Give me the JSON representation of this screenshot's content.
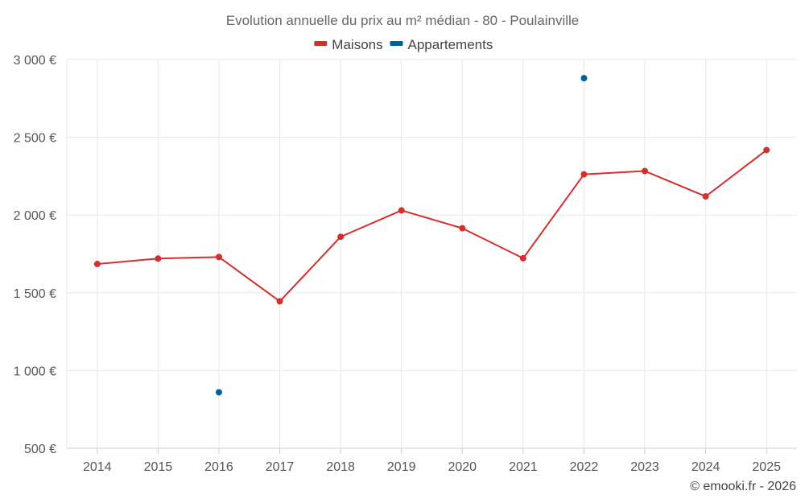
{
  "chart_data": {
    "type": "line",
    "title": "Evolution annuelle du prix au m² médian - 80 - Poulainville",
    "categories": [
      "2014",
      "2015",
      "2016",
      "2017",
      "2018",
      "2019",
      "2020",
      "2021",
      "2022",
      "2023",
      "2024",
      "2025"
    ],
    "series": [
      {
        "name": "Maisons",
        "color": "#d32f2f",
        "values": [
          1685,
          1720,
          1730,
          1445,
          1860,
          2030,
          1915,
          1722,
          2262,
          2283,
          2120,
          2418
        ]
      },
      {
        "name": "Appartements",
        "color": "#01609a",
        "values": [
          null,
          null,
          860,
          null,
          null,
          null,
          null,
          null,
          2880,
          null,
          null,
          null
        ]
      }
    ],
    "ylim": [
      500,
      3000
    ],
    "yticks": [
      500,
      1000,
      1500,
      2000,
      2500,
      3000
    ],
    "ytick_labels": [
      "500 €",
      "1 000 €",
      "1 500 €",
      "2 000 €",
      "2 500 €",
      "3 000 €"
    ],
    "grid": true,
    "legend_position": "top-center"
  },
  "credit": "© emooki.fr - 2026"
}
